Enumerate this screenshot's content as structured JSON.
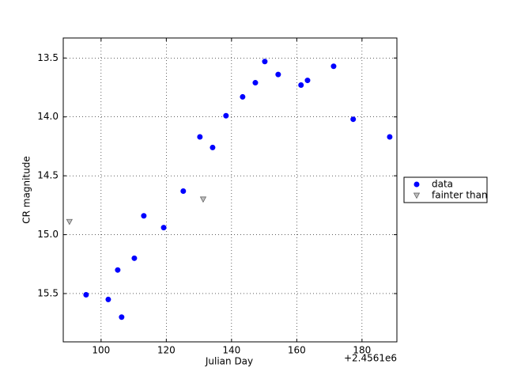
{
  "chart_data": {
    "type": "scatter",
    "xlabel": "Julian Day",
    "ylabel": "CR magnitude",
    "x_offset_label": "+2.4561e6",
    "xlim": [
      88.4,
      190.7
    ],
    "ylim": [
      13.33,
      15.91
    ],
    "invert_y": true,
    "xticks": [
      100,
      120,
      140,
      160,
      180
    ],
    "yticks": [
      13.5,
      {
        "value": 14,
        "label": "14.0"
      },
      14.5,
      {
        "value": 15,
        "label": "15.0"
      },
      15.5
    ],
    "grid": true,
    "legend": "outside-right",
    "series": [
      {
        "name": "data",
        "color": "#0000ff",
        "marker": "circle",
        "x": [
          95.4,
          102.2,
          105.1,
          106.3,
          110.2,
          113.1,
          119.2,
          125.2,
          130.3,
          134.2,
          138.3,
          143.4,
          147.3,
          150.2,
          154.3,
          161.3,
          163.3,
          171.3,
          177.3,
          188.5
        ],
        "values": [
          15.51,
          15.55,
          15.3,
          15.7,
          15.2,
          14.84,
          14.94,
          14.63,
          14.17,
          14.26,
          13.99,
          13.83,
          13.71,
          13.53,
          13.64,
          13.73,
          13.69,
          13.57,
          14.02,
          14.17
        ]
      },
      {
        "name": "fainter than",
        "color": "#bfbfbf",
        "marker": "triangle-down",
        "x": [
          90.3,
          131.3
        ],
        "values": [
          14.89,
          14.7
        ]
      }
    ]
  }
}
